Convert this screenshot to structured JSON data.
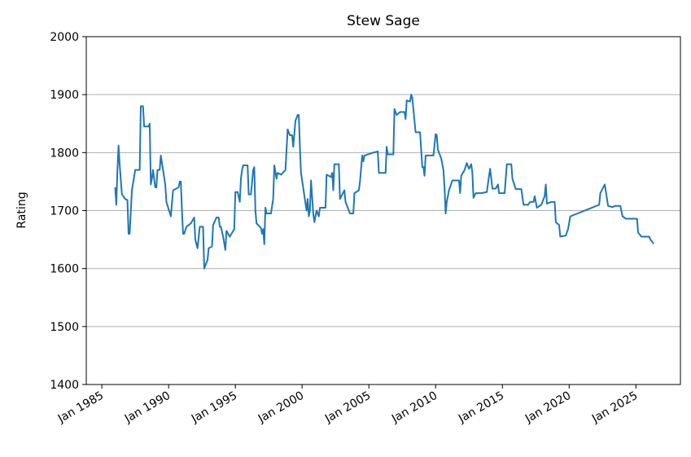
{
  "chart_data": {
    "type": "line",
    "title": "Stew Sage",
    "y_label": "Rating",
    "color": "#1f77b4",
    "grid": true,
    "ylim": [
      1400,
      2000
    ],
    "yticks": [
      1400,
      1500,
      1600,
      1700,
      1800,
      1900,
      2000
    ],
    "xlim": [
      "1983-11",
      "2028-05"
    ],
    "xticks": [
      {
        "value": "1985-01",
        "label": "Jan 1985"
      },
      {
        "value": "1990-01",
        "label": "Jan 1990"
      },
      {
        "value": "1995-01",
        "label": "Jan 1995"
      },
      {
        "value": "2000-01",
        "label": "Jan 2000"
      },
      {
        "value": "2005-01",
        "label": "Jan 2005"
      },
      {
        "value": "2010-01",
        "label": "Jan 2010"
      },
      {
        "value": "2015-01",
        "label": "Jan 2015"
      },
      {
        "value": "2020-01",
        "label": "Jan 2020"
      },
      {
        "value": "2025-01",
        "label": "Jan 2025"
      }
    ],
    "x": [
      "1986-01",
      "1986-02",
      "1986-03",
      "1986-04",
      "1986-05",
      "1986-07",
      "1986-10",
      "1986-12",
      "1987-01",
      "1987-02",
      "1987-04",
      "1987-07",
      "1987-11",
      "1987-12",
      "1988-02",
      "1988-03",
      "1988-07",
      "1988-08",
      "1988-09",
      "1988-10",
      "1988-11",
      "1989-01",
      "1989-02",
      "1989-03",
      "1989-05",
      "1989-06",
      "1989-08",
      "1989-10",
      "1989-11",
      "1990-03",
      "1990-05",
      "1990-10",
      "1990-11",
      "1990-12",
      "1991-01",
      "1991-02",
      "1991-03",
      "1991-05",
      "1991-09",
      "1991-12",
      "1992-01",
      "1992-03",
      "1992-05",
      "1992-08",
      "1992-09",
      "1992-12",
      "1993-01",
      "1993-04",
      "1993-05",
      "1993-08",
      "1993-10",
      "1993-11",
      "1993-12",
      "1994-02",
      "1994-04",
      "1994-05",
      "1994-08",
      "1994-12",
      "1995-01",
      "1995-03",
      "1995-05",
      "1995-06",
      "1995-07",
      "1995-08",
      "1995-12",
      "1996-01",
      "1996-03",
      "1996-05",
      "1996-06",
      "1996-07",
      "1996-08",
      "1996-12",
      "1997-01",
      "1997-02",
      "1997-03",
      "1997-04",
      "1997-05",
      "1997-09",
      "1997-11",
      "1997-12",
      "1998-02",
      "1998-03",
      "1998-06",
      "1998-10",
      "1998-12",
      "1999-02",
      "1999-04",
      "1999-05",
      "1999-07",
      "1999-09",
      "1999-10",
      "1999-11",
      "1999-12",
      "2000-05",
      "2000-06",
      "2000-07",
      "2000-08",
      "2000-09",
      "2000-11",
      "2000-12",
      "2001-02",
      "2001-04",
      "2001-05",
      "2001-10",
      "2001-11",
      "2002-03",
      "2002-04",
      "2002-05",
      "2002-06",
      "2002-10",
      "2002-11",
      "2003-03",
      "2003-04",
      "2003-08",
      "2003-11",
      "2003-12",
      "2004-04",
      "2004-05",
      "2004-07",
      "2004-08",
      "2004-09",
      "2005-05",
      "2005-09",
      "2005-10",
      "2006-04",
      "2006-05",
      "2006-06",
      "2006-11",
      "2006-12",
      "2007-02",
      "2007-05",
      "2007-09",
      "2007-10",
      "2007-11",
      "2008-02",
      "2008-03",
      "2008-04",
      "2008-07",
      "2008-11",
      "2009-01",
      "2009-02",
      "2009-03",
      "2009-04",
      "2009-08",
      "2009-11",
      "2010-01",
      "2010-02",
      "2010-03",
      "2010-06",
      "2010-08",
      "2010-09",
      "2010-10",
      "2010-11",
      "2011-01",
      "2011-04",
      "2011-10",
      "2011-11",
      "2011-12",
      "2012-03",
      "2012-05",
      "2012-07",
      "2012-09",
      "2012-10",
      "2012-11",
      "2013-01",
      "2013-06",
      "2013-11",
      "2014-01",
      "2014-02",
      "2014-04",
      "2014-07",
      "2014-09",
      "2014-10",
      "2015-03",
      "2015-05",
      "2015-09",
      "2015-10",
      "2016-01",
      "2016-06",
      "2016-08",
      "2016-12",
      "2017-02",
      "2017-05",
      "2017-06",
      "2017-08",
      "2017-12",
      "2018-03",
      "2018-04",
      "2018-05",
      "2018-09",
      "2018-12",
      "2019-01",
      "2019-04",
      "2019-05",
      "2019-10",
      "2019-12",
      "2020-02",
      "2022-04",
      "2022-05",
      "2022-09",
      "2022-12",
      "2023-04",
      "2023-06",
      "2023-11",
      "2024-01",
      "2024-04",
      "2025-02",
      "2025-03",
      "2025-06",
      "2026-01",
      "2026-02",
      "2026-05"
    ],
    "values": [
      1740,
      1710,
      1770,
      1812,
      1780,
      1728,
      1720,
      1718,
      1660,
      1660,
      1735,
      1770,
      1770,
      1880,
      1880,
      1845,
      1845,
      1850,
      1745,
      1755,
      1770,
      1740,
      1740,
      1770,
      1770,
      1795,
      1770,
      1745,
      1715,
      1690,
      1735,
      1740,
      1750,
      1750,
      1700,
      1660,
      1660,
      1672,
      1678,
      1688,
      1650,
      1635,
      1672,
      1672,
      1600,
      1615,
      1635,
      1638,
      1675,
      1688,
      1688,
      1672,
      1672,
      1655,
      1632,
      1665,
      1655,
      1668,
      1732,
      1732,
      1715,
      1755,
      1770,
      1778,
      1778,
      1728,
      1728,
      1770,
      1775,
      1700,
      1678,
      1670,
      1660,
      1668,
      1642,
      1705,
      1695,
      1695,
      1720,
      1778,
      1755,
      1765,
      1762,
      1770,
      1840,
      1830,
      1830,
      1810,
      1855,
      1865,
      1865,
      1810,
      1765,
      1700,
      1720,
      1690,
      1700,
      1752,
      1695,
      1680,
      1700,
      1690,
      1705,
      1705,
      1762,
      1758,
      1765,
      1735,
      1780,
      1780,
      1720,
      1735,
      1715,
      1695,
      1695,
      1730,
      1735,
      1750,
      1795,
      1785,
      1795,
      1800,
      1802,
      1765,
      1765,
      1810,
      1797,
      1797,
      1875,
      1865,
      1870,
      1870,
      1858,
      1890,
      1888,
      1900,
      1895,
      1835,
      1835,
      1775,
      1775,
      1760,
      1795,
      1795,
      1795,
      1832,
      1830,
      1805,
      1790,
      1770,
      1740,
      1695,
      1715,
      1735,
      1752,
      1752,
      1730,
      1760,
      1770,
      1782,
      1772,
      1780,
      1765,
      1722,
      1730,
      1730,
      1732,
      1760,
      1772,
      1738,
      1738,
      1745,
      1730,
      1730,
      1780,
      1780,
      1755,
      1737,
      1737,
      1710,
      1710,
      1715,
      1715,
      1725,
      1705,
      1710,
      1725,
      1745,
      1712,
      1715,
      1715,
      1680,
      1675,
      1655,
      1657,
      1668,
      1690,
      1710,
      1730,
      1745,
      1708,
      1706,
      1708,
      1708,
      1690,
      1686,
      1686,
      1662,
      1655,
      1655,
      1650,
      1643
    ]
  }
}
